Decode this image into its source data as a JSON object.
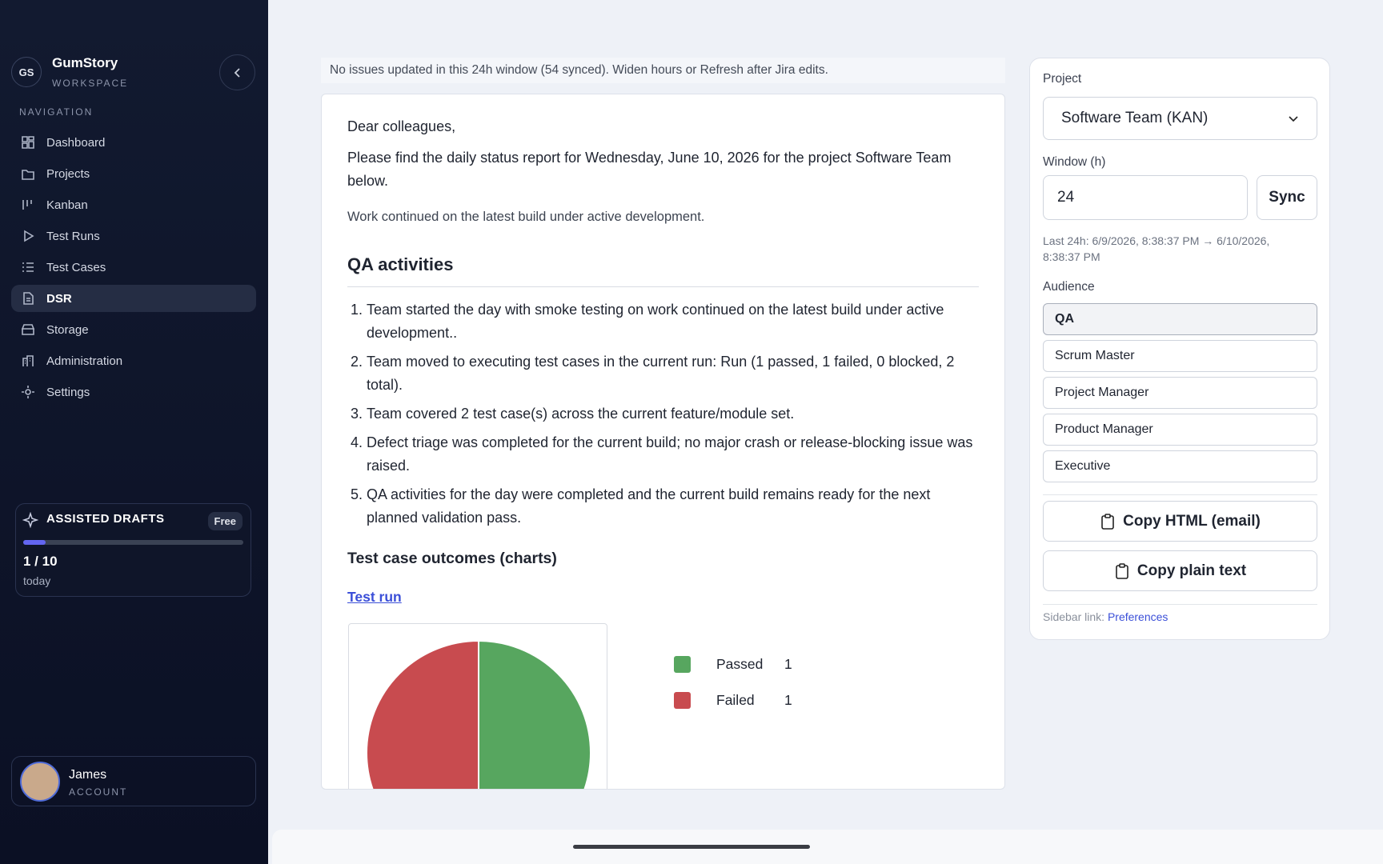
{
  "sidebar": {
    "initials": "GS",
    "brand": "GumStory",
    "brand_sub": "WORKSPACE",
    "nav_title": "NAVIGATION",
    "nav": [
      "Dashboard",
      "Projects",
      "Kanban",
      "Test Runs",
      "Test Cases",
      "DSR",
      "Storage",
      "Administration",
      "Settings"
    ],
    "drafts": {
      "title": "ASSISTED DRAFTS",
      "badge": "Free",
      "count": "1 / 10",
      "period": "today"
    },
    "user": {
      "name": "James",
      "role": "ACCOUNT"
    }
  },
  "notice": "No issues updated in this 24h window (54 synced). Widen hours or Refresh after Jira edits.",
  "report": {
    "greeting": "Dear colleagues,",
    "intro": "Please find the daily status report for Wednesday, June 10, 2026 for the project Software Team below.",
    "summary": "Work continued on the latest build under active development.",
    "qa_heading": "QA activities",
    "qa_items": [
      "Team started the day with smoke testing on work continued on the latest build under active development..",
      "Team moved to executing test cases in the current run: Run (1 passed, 1 failed, 0 blocked, 2 total).",
      "Team covered 2 test case(s) across the current feature/module set.",
      "Defect triage was completed for the current build; no major crash or release-blocking issue was raised.",
      "QA activities for the day were completed and the current build remains ready for the next planned validation pass."
    ],
    "outcomes_heading": "Test case outcomes (charts)",
    "link": "Test run",
    "chart_data": {
      "type": "pie",
      "categories": [
        "Passed",
        "Failed"
      ],
      "values": [
        1,
        1
      ],
      "colors": [
        "#57a65f",
        "#c84b4f"
      ]
    }
  },
  "panel": {
    "project_label": "Project",
    "project_value": "Software Team (KAN)",
    "window_label": "Window (h)",
    "window_value": "24",
    "sync": "Sync",
    "range": "Last 24h: 6/9/2026, 8:38:37 PM → 6/10/2026, 8:38:37 PM",
    "audience_label": "Audience",
    "audience": [
      "QA",
      "Scrum Master",
      "Project Manager",
      "Product Manager",
      "Executive"
    ],
    "copy_html": "Copy HTML (email)",
    "copy_text": "Copy plain text",
    "sidebar_link_label": "Sidebar link:",
    "sidebar_link": "Preferences"
  }
}
